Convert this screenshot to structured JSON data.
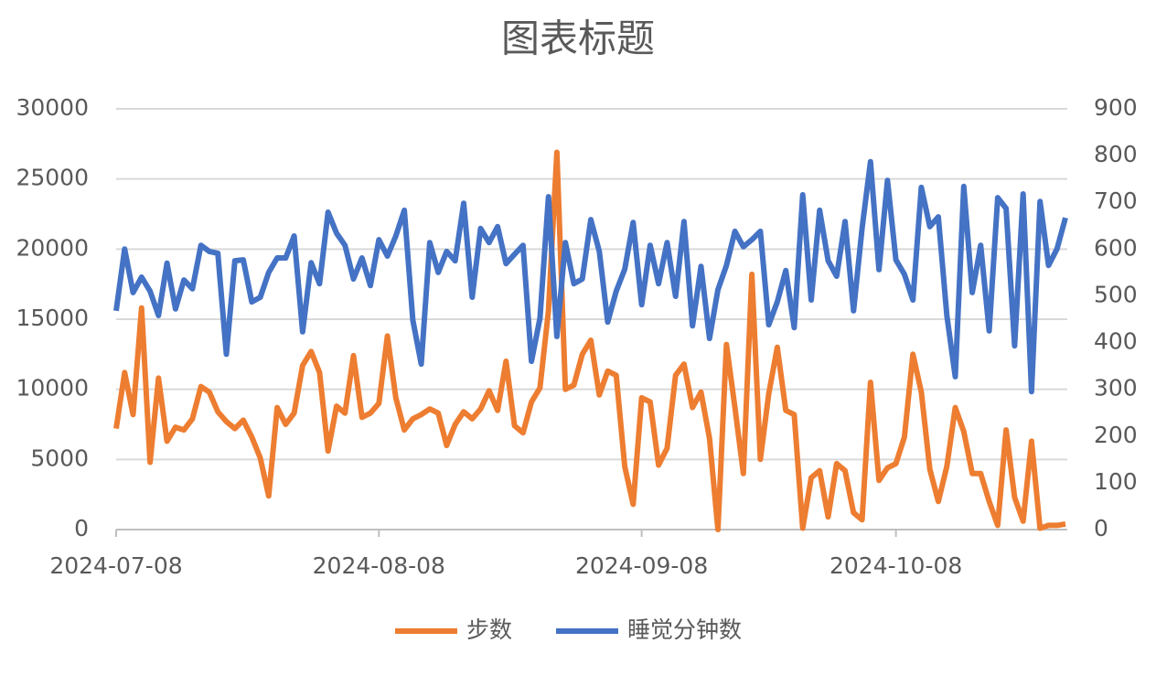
{
  "chart_data": {
    "type": "line",
    "title": "图表标题",
    "x": [
      "2024-07-08",
      "2024-07-09",
      "2024-07-10",
      "2024-07-11",
      "2024-07-12",
      "2024-07-13",
      "2024-07-14",
      "2024-07-15",
      "2024-07-16",
      "2024-07-17",
      "2024-07-18",
      "2024-07-19",
      "2024-07-20",
      "2024-07-21",
      "2024-07-22",
      "2024-07-23",
      "2024-07-24",
      "2024-07-25",
      "2024-07-26",
      "2024-07-27",
      "2024-07-28",
      "2024-07-29",
      "2024-07-30",
      "2024-07-31",
      "2024-08-01",
      "2024-08-02",
      "2024-08-03",
      "2024-08-04",
      "2024-08-05",
      "2024-08-06",
      "2024-08-07",
      "2024-08-08",
      "2024-08-09",
      "2024-08-10",
      "2024-08-11",
      "2024-08-12",
      "2024-08-13",
      "2024-08-14",
      "2024-08-15",
      "2024-08-16",
      "2024-08-17",
      "2024-08-18",
      "2024-08-19",
      "2024-08-20",
      "2024-08-21",
      "2024-08-22",
      "2024-08-23",
      "2024-08-24",
      "2024-08-25",
      "2024-08-26",
      "2024-08-27",
      "2024-08-28",
      "2024-08-29",
      "2024-08-30",
      "2024-08-31",
      "2024-09-01",
      "2024-09-02",
      "2024-09-03",
      "2024-09-04",
      "2024-09-05",
      "2024-09-06",
      "2024-09-07",
      "2024-09-08",
      "2024-09-09",
      "2024-09-10",
      "2024-09-11",
      "2024-09-12",
      "2024-09-13",
      "2024-09-14",
      "2024-09-15",
      "2024-09-16",
      "2024-09-17",
      "2024-09-18",
      "2024-09-19",
      "2024-09-20",
      "2024-09-21",
      "2024-09-22",
      "2024-09-23",
      "2024-09-24",
      "2024-09-25",
      "2024-09-26",
      "2024-09-27",
      "2024-09-28",
      "2024-09-29",
      "2024-09-30",
      "2024-10-01",
      "2024-10-02",
      "2024-10-03",
      "2024-10-04",
      "2024-10-05",
      "2024-10-06",
      "2024-10-07",
      "2024-10-08",
      "2024-10-09",
      "2024-10-10",
      "2024-10-11",
      "2024-10-12",
      "2024-10-13",
      "2024-10-14",
      "2024-10-15",
      "2024-10-16",
      "2024-10-17",
      "2024-10-18",
      "2024-10-19",
      "2024-10-20",
      "2024-10-21",
      "2024-10-22",
      "2024-10-23",
      "2024-10-24",
      "2024-10-25",
      "2024-10-26",
      "2024-10-27",
      "2024-10-28"
    ],
    "series": [
      {
        "name": "步数",
        "color": "#ed7d31",
        "values": [
          7200,
          11200,
          8200,
          15800,
          4800,
          10800,
          6300,
          7300,
          7100,
          7900,
          10200,
          9800,
          8400,
          7700,
          7200,
          7800,
          6600,
          5100,
          2400,
          8700,
          7500,
          8300,
          11700,
          12700,
          11200,
          5600,
          8800,
          8300,
          12400,
          8000,
          8300,
          9000,
          13800,
          9400,
          7100,
          7900,
          8200,
          8600,
          8300,
          6000,
          7500,
          8400,
          7900,
          8600,
          9900,
          8500,
          12000,
          7400,
          6900,
          9100,
          10100,
          15600,
          26900,
          10000,
          10300,
          12500,
          13500,
          9600,
          11300,
          11000,
          4500,
          1800,
          9400,
          9100,
          4600,
          5800,
          11000,
          11800,
          8700,
          9800,
          6500,
          0,
          13200,
          8700,
          4000,
          18200,
          5000,
          9700,
          13000,
          8500,
          8200,
          100,
          3700,
          4200,
          900,
          4700,
          4200,
          1200,
          700,
          10500,
          3500,
          4400,
          4700,
          6600,
          12500,
          9800,
          4300,
          2000,
          4500,
          8700,
          7000,
          4000,
          4000,
          2000,
          300,
          7100,
          2300,
          600,
          6300,
          100,
          300,
          300,
          400
        ]
      },
      {
        "name": "睡觉分钟数",
        "color": "#4472c4",
        "axis": "y2",
        "values": [
          468,
          600,
          507,
          540,
          510,
          458,
          570,
          472,
          534,
          515,
          608,
          595,
          591,
          375,
          575,
          577,
          487,
          497,
          550,
          581,
          581,
          628,
          423,
          571,
          526,
          679,
          634,
          608,
          536,
          581,
          522,
          620,
          585,
          628,
          683,
          448,
          354,
          614,
          550,
          595,
          575,
          698,
          497,
          644,
          614,
          648,
          569,
          589,
          608,
          360,
          452,
          712,
          413,
          614,
          526,
          536,
          663,
          595,
          444,
          510,
          557,
          657,
          481,
          608,
          526,
          614,
          499,
          659,
          436,
          563,
          409,
          513,
          565,
          638,
          605,
          620,
          638,
          438,
          487,
          554,
          432,
          716,
          491,
          683,
          575,
          542,
          659,
          468,
          644,
          787,
          556,
          747,
          577,
          546,
          491,
          732,
          648,
          669,
          458,
          327,
          734,
          507,
          608,
          425,
          710,
          687,
          393,
          718,
          295,
          702,
          565,
          600,
          667
        ]
      }
    ],
    "xlim": [
      "2024-07-08",
      "2024-10-28"
    ],
    "xticks": [
      "2024-07-08",
      "2024-08-08",
      "2024-09-08",
      "2024-10-08"
    ],
    "ylim": [
      0,
      30000
    ],
    "yticks": [
      0,
      5000,
      10000,
      15000,
      20000,
      25000,
      30000
    ],
    "y2lim": [
      0,
      900
    ],
    "y2ticks": [
      0,
      100,
      200,
      300,
      400,
      500,
      600,
      700,
      800,
      900
    ],
    "grid": true,
    "legend": "bottom"
  }
}
